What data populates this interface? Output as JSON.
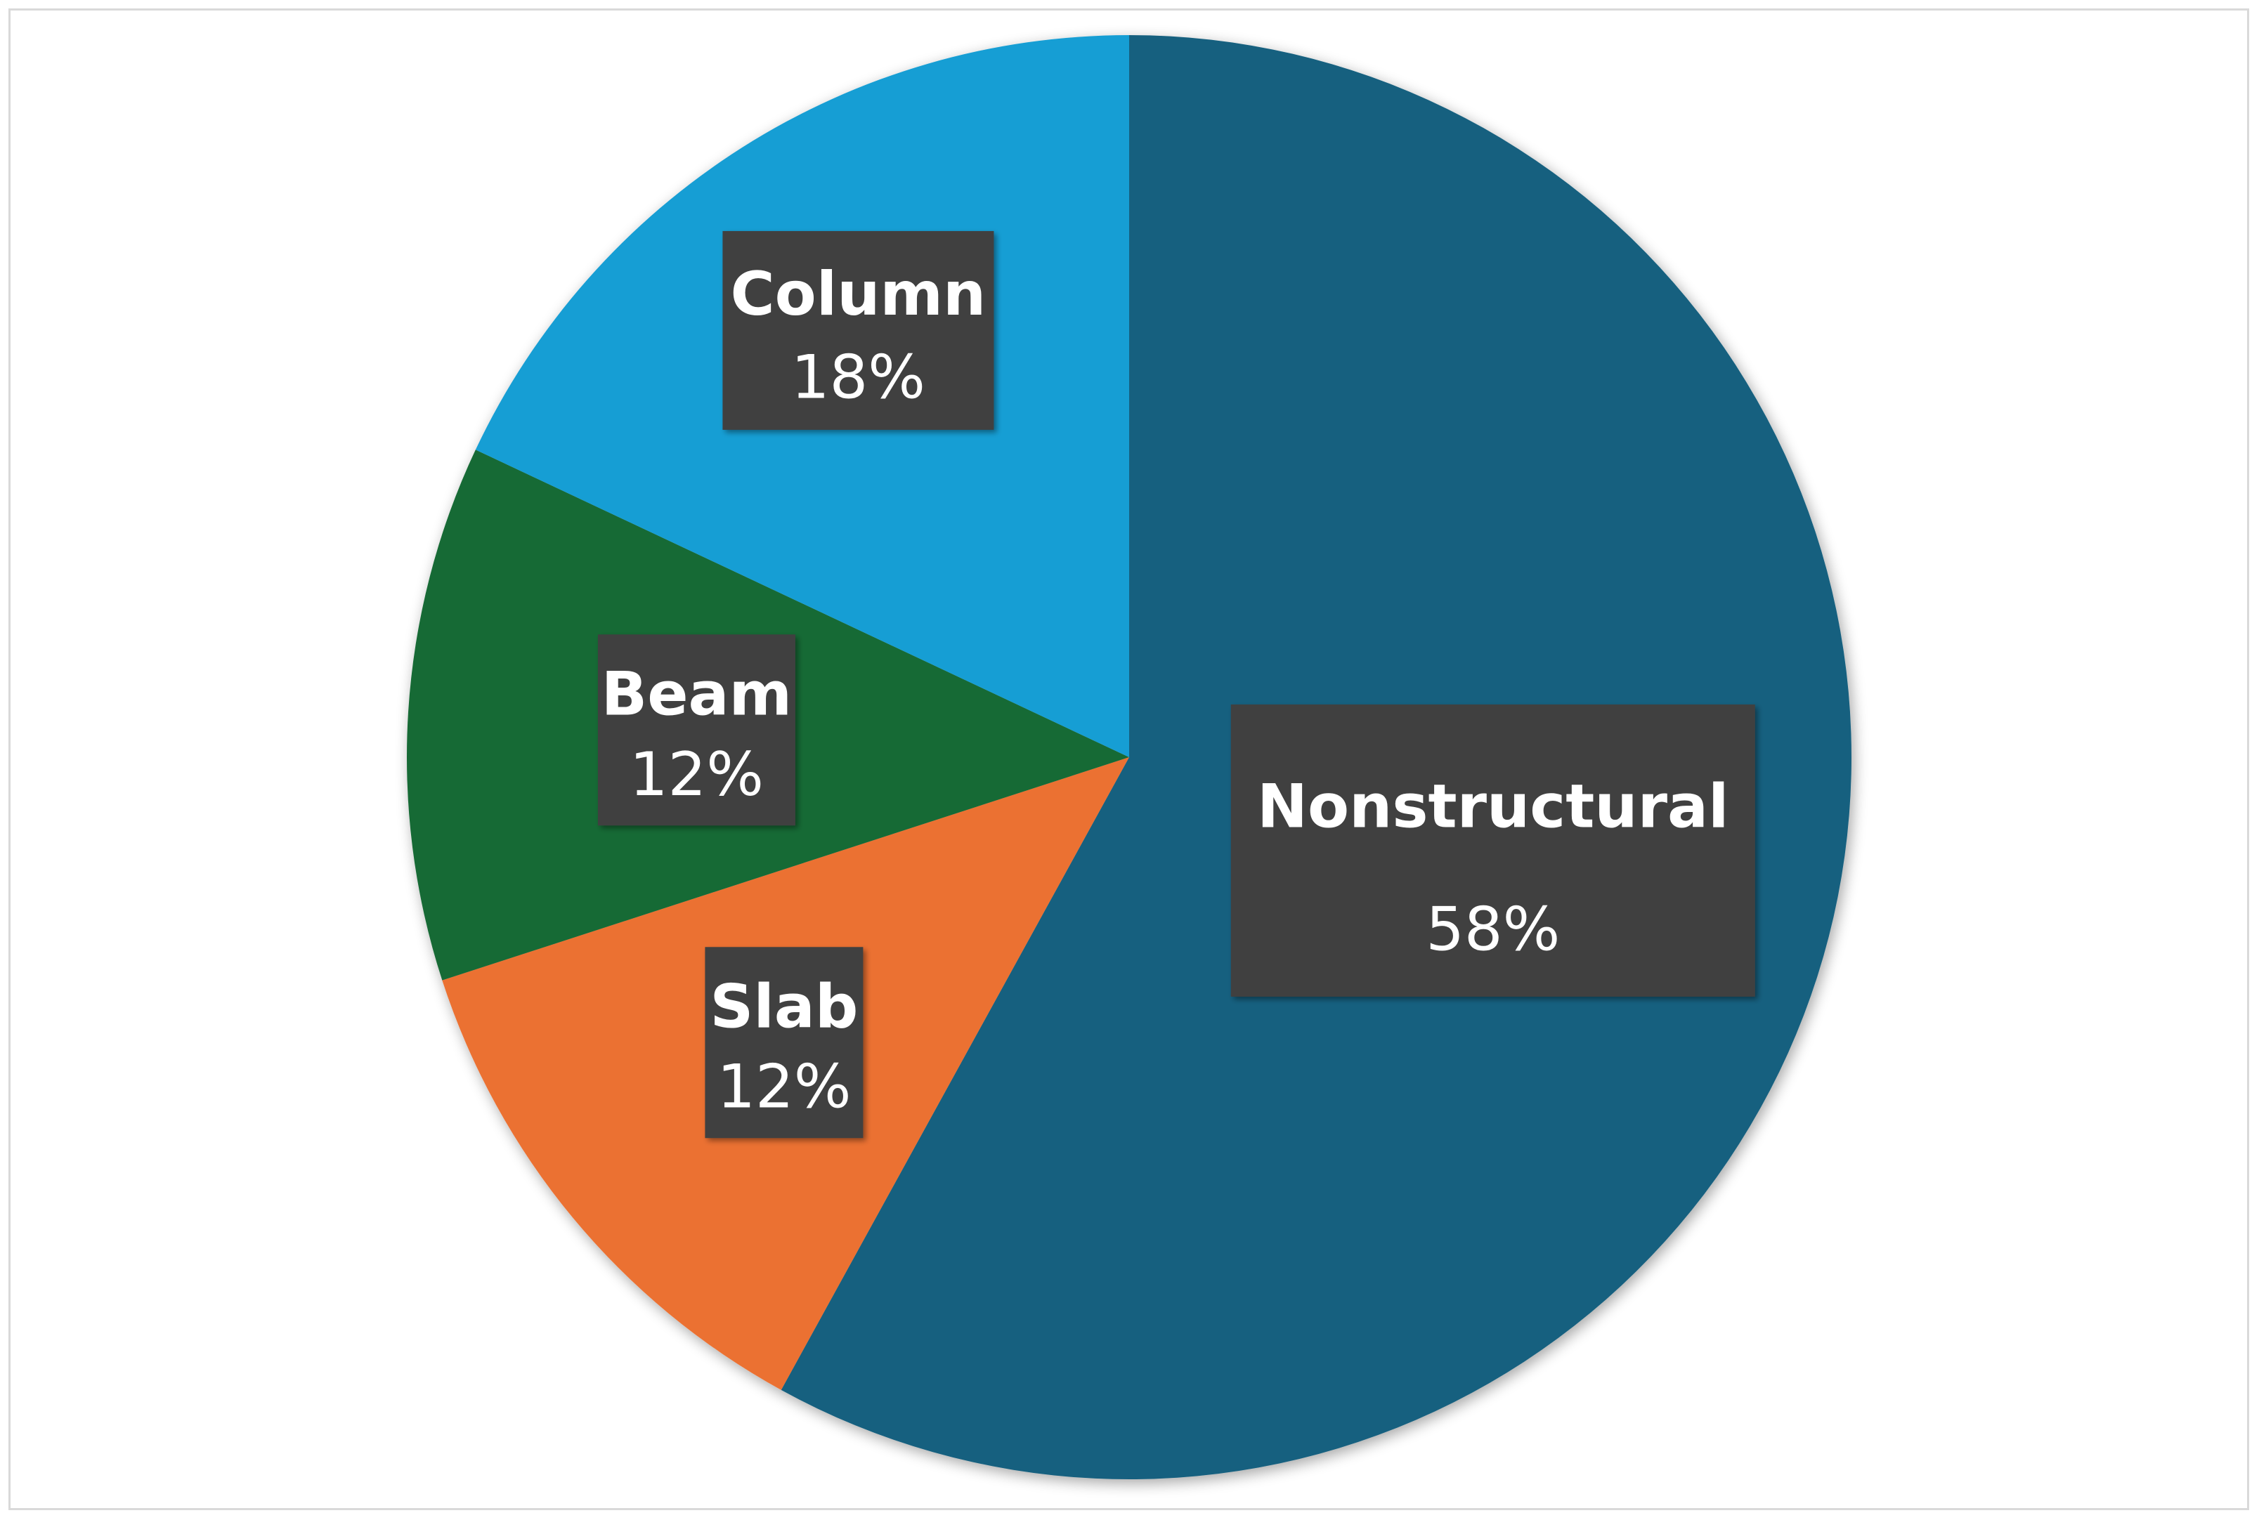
{
  "chart_data": {
    "type": "pie",
    "title": "",
    "slices": [
      {
        "label": "Nonstructural",
        "value": 58,
        "value_label": "58%",
        "color": "#17607f"
      },
      {
        "label": "Slab",
        "value": 12,
        "value_label": "12%",
        "color": "#eb7133"
      },
      {
        "label": "Beam",
        "value": 12,
        "value_label": "12%",
        "color": "#186a36"
      },
      {
        "label": "Column",
        "value": 18,
        "value_label": "18%",
        "color": "#199ed4"
      }
    ],
    "start_angle_deg": 0,
    "direction": "clockwise",
    "legend": "none",
    "data_labels": "category name and percentage on dark boxes",
    "label_box_color": "#404040",
    "label_text_color": "#ffffff",
    "frame_border_color": "#d9d9d9"
  }
}
